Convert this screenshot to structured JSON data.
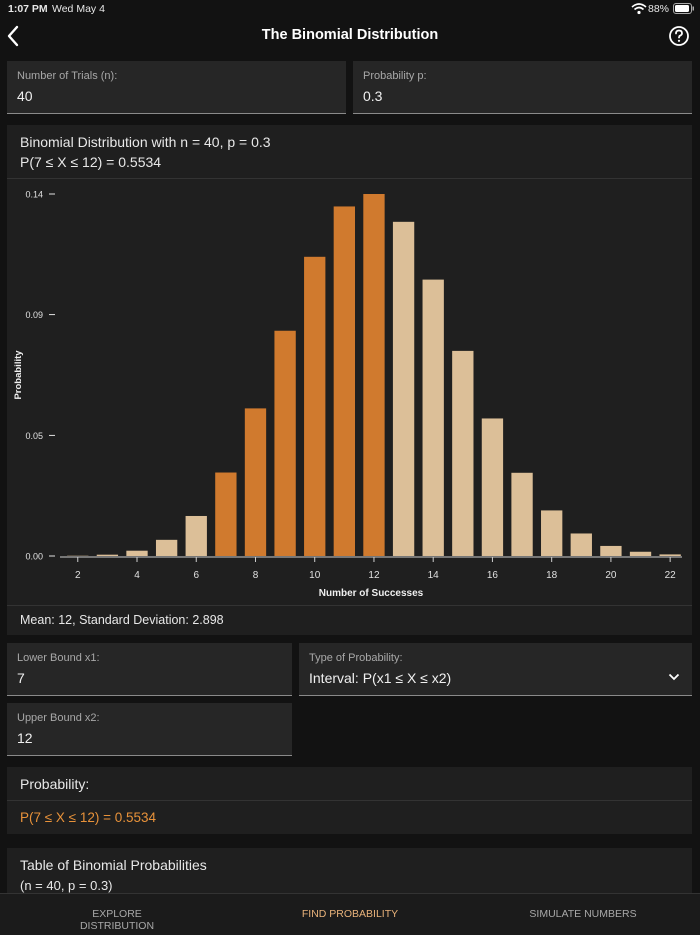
{
  "status_bar": {
    "time": "1:07 PM",
    "date": "Wed May 4",
    "battery": "88%"
  },
  "header": {
    "title": "The Binomial Distribution"
  },
  "inputs": {
    "trials": {
      "label": "Number of Trials (n):",
      "value": "40"
    },
    "probability": {
      "label": "Probability p:",
      "value": "0.3"
    }
  },
  "chart_data": {
    "type": "bar",
    "title": "Binomial Distribution with n = 40, p = 0.3",
    "subtitle": "P(7 ≤ X ≤ 12) = 0.5534",
    "x_label": "Number of Successes",
    "y_label": "Probability",
    "x": [
      2,
      3,
      4,
      5,
      6,
      7,
      8,
      9,
      10,
      11,
      12,
      13,
      14,
      15,
      16,
      17,
      18,
      19,
      20,
      21,
      22
    ],
    "values": [
      0.0001,
      0.0005,
      0.002,
      0.0061,
      0.0151,
      0.0315,
      0.0557,
      0.085,
      0.1129,
      0.1319,
      0.1366,
      0.1261,
      0.1043,
      0.0774,
      0.0519,
      0.0314,
      0.0172,
      0.0085,
      0.0038,
      0.0016,
      0.0006
    ],
    "colors": [
      "#dcbf98",
      "#dcbf98",
      "#dcbf98",
      "#dcbf98",
      "#dcbf98",
      "#d07a2e",
      "#d07a2e",
      "#d07a2e",
      "#d07a2e",
      "#d07a2e",
      "#d07a2e",
      "#dcbf98",
      "#dcbf98",
      "#dcbf98",
      "#dcbf98",
      "#dcbf98",
      "#dcbf98",
      "#dcbf98",
      "#dcbf98",
      "#dcbf98",
      "#dcbf98"
    ],
    "xlim": [
      1.4,
      22.4
    ],
    "ylim": [
      0,
      0.1366
    ],
    "xticks": [
      2,
      4,
      6,
      8,
      10,
      12,
      14,
      16,
      18,
      20,
      22
    ],
    "yticks": [
      {
        "value": 0,
        "label": "0.00"
      },
      {
        "value": 0.0455,
        "label": "0.05"
      },
      {
        "value": 0.0911,
        "label": "0.09"
      },
      {
        "value": 0.1366,
        "label": "0.14"
      }
    ]
  },
  "summary": "Mean: 12, Standard Deviation: 2.898",
  "bounds": {
    "lower": {
      "label": "Lower Bound x1:",
      "value": "7"
    },
    "upper": {
      "label": "Upper Bound x2:",
      "value": "12"
    },
    "type": {
      "label": "Type of Probability:",
      "value": "Interval: P(x1 ≤ X ≤ x2)"
    }
  },
  "result": {
    "label": "Probability:",
    "value": "P(7 ≤ X ≤ 12) = 0.5534"
  },
  "table": {
    "title": "Table of Binomial Probabilities",
    "subtitle": "(n = 40, p = 0.3)"
  },
  "tabs": [
    {
      "label": "EXPLORE DISTRIBUTION"
    },
    {
      "label": "FIND PROBABILITY"
    },
    {
      "label": "SIMULATE NUMBERS"
    }
  ]
}
